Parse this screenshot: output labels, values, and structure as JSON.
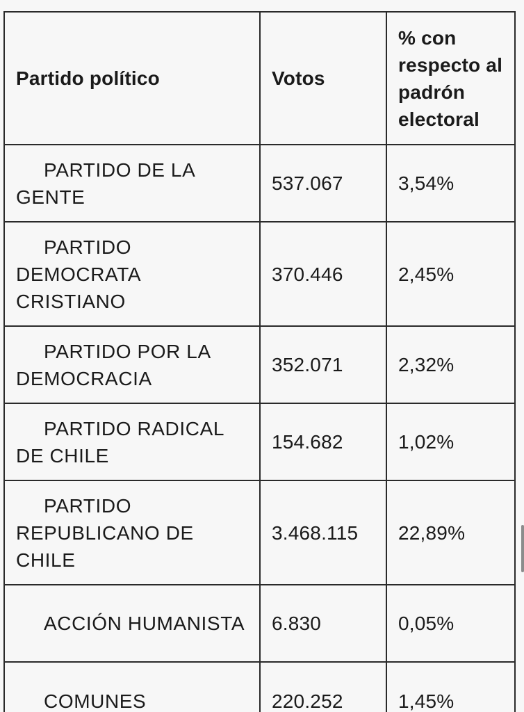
{
  "table": {
    "headers": {
      "party": "Partido político",
      "votes": "Votos",
      "percent": "% con respecto al padrón electoral"
    },
    "rows": [
      {
        "party": "PARTIDO DE LA GENTE",
        "votes": "537.067",
        "percent": "3,54%"
      },
      {
        "party": "PARTIDO DEMOCRATA CRISTIANO",
        "votes": "370.446",
        "percent": "2,45%"
      },
      {
        "party": "PARTIDO POR LA DEMOCRACIA",
        "votes": "352.071",
        "percent": "2,32%"
      },
      {
        "party": "PARTIDO RADICAL DE CHILE",
        "votes": "154.682",
        "percent": "1,02%"
      },
      {
        "party": "PARTIDO REPUBLICANO DE CHILE",
        "votes": "3.468.115",
        "percent": "22,89%"
      },
      {
        "party": "ACCIÓN HUMANISTA",
        "votes": "6.830",
        "percent": "0,05%"
      },
      {
        "party": "COMUNES",
        "votes": "220.252",
        "percent": "1,45%"
      }
    ]
  }
}
